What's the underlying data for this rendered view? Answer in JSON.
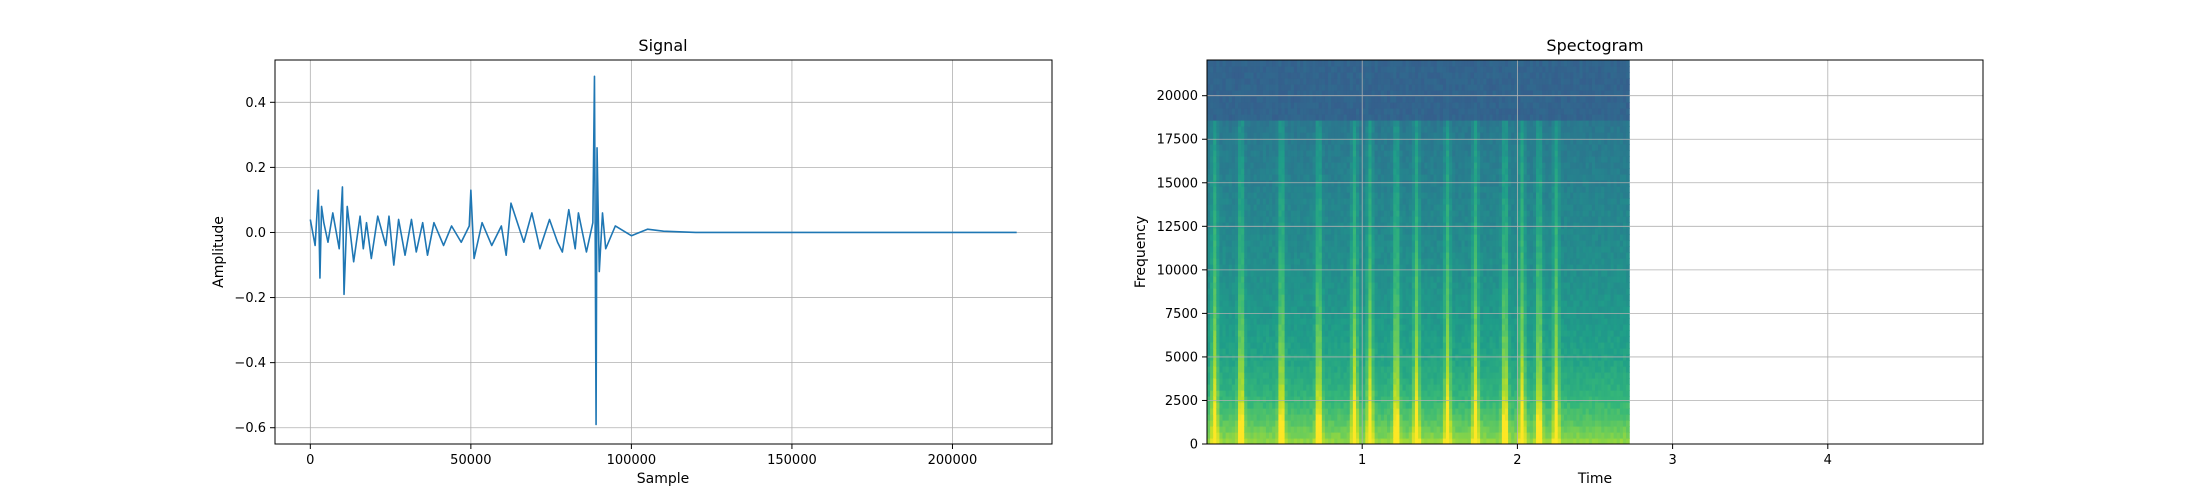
{
  "chart_data": [
    {
      "type": "line",
      "title": "Signal",
      "xlabel": "Sample",
      "ylabel": "Amplitude",
      "xlim": [
        -11000,
        231000
      ],
      "ylim": [
        -0.65,
        0.53
      ],
      "xticks": [
        0,
        50000,
        100000,
        150000,
        200000
      ],
      "xtick_labels": [
        "0",
        "50000",
        "100000",
        "150000",
        "200000"
      ],
      "yticks": [
        -0.6,
        -0.4,
        -0.2,
        0.0,
        0.2,
        0.4
      ],
      "ytick_labels": [
        "−0.6",
        "−0.4",
        "−0.2",
        "0.0",
        "0.2",
        "0.4"
      ],
      "grid": true,
      "color": "#1f77b4",
      "series": [
        {
          "x": [
            0,
            1500,
            2500,
            3000,
            3500,
            4200,
            5500,
            7000,
            9000,
            10000,
            10500,
            11500,
            13500,
            15500,
            16500,
            17500,
            19000,
            21000,
            23500,
            24500,
            26000,
            27500,
            29500,
            31500,
            33000,
            35000,
            36500,
            38500,
            41500,
            44000,
            47000,
            49500,
            50000,
            51000,
            53500,
            56500,
            59500,
            61000,
            62500,
            66500,
            69000,
            71500,
            74500,
            77000,
            78500,
            80500,
            82500,
            83500,
            86000,
            88000,
            88500,
            89000,
            89300,
            90000,
            91000,
            92000,
            95000,
            100000,
            105000,
            110000,
            120000,
            150000,
            200000,
            220000
          ],
          "y": [
            0.04,
            -0.04,
            0.13,
            -0.14,
            0.08,
            0.03,
            -0.03,
            0.06,
            -0.05,
            0.14,
            -0.19,
            0.08,
            -0.09,
            0.05,
            -0.05,
            0.03,
            -0.08,
            0.05,
            -0.04,
            0.05,
            -0.1,
            0.04,
            -0.07,
            0.04,
            -0.06,
            0.03,
            -0.07,
            0.03,
            -0.04,
            0.02,
            -0.03,
            0.02,
            0.13,
            -0.08,
            0.03,
            -0.04,
            0.02,
            -0.07,
            0.09,
            -0.03,
            0.06,
            -0.05,
            0.04,
            -0.03,
            -0.06,
            0.07,
            -0.05,
            0.06,
            -0.06,
            0.03,
            0.48,
            -0.59,
            0.26,
            -0.12,
            0.06,
            -0.05,
            0.02,
            -0.01,
            0.01,
            0.004,
            0.0,
            0.0,
            0.0,
            0.0
          ]
        }
      ]
    },
    {
      "type": "heatmap",
      "title": "Spectogram",
      "xlabel": "Time",
      "ylabel": "Frequency",
      "xlim": [
        0,
        5
      ],
      "ylim": [
        0,
        22050
      ],
      "data_extent": [
        0,
        2.72
      ],
      "xticks": [
        1,
        2,
        3,
        4
      ],
      "xtick_labels": [
        "1",
        "2",
        "3",
        "4"
      ],
      "yticks": [
        0,
        2500,
        5000,
        7500,
        10000,
        12500,
        15000,
        17500,
        20000
      ],
      "ytick_labels": [
        "0",
        "2500",
        "5000",
        "7500",
        "10000",
        "12500",
        "15000",
        "17500",
        "20000"
      ],
      "grid": true,
      "colormap": "viridis",
      "loud_times": [
        0.05,
        0.22,
        0.48,
        0.72,
        0.95,
        1.05,
        1.22,
        1.35,
        1.55,
        1.73,
        1.92,
        2.03,
        2.14,
        2.25
      ],
      "high_band_edge": 18500
    }
  ]
}
